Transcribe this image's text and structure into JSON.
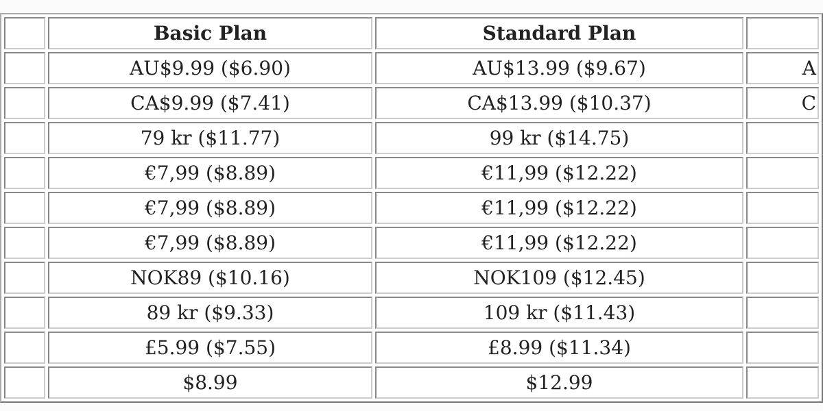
{
  "table": {
    "headers": [
      "",
      "Basic Plan",
      "Standard Plan",
      ""
    ],
    "rows": [
      {
        "basic": "AU$9.99 ($6.90)",
        "standard": "AU$13.99 ($9.67)",
        "premium_partial": "A"
      },
      {
        "basic": "CA$9.99 ($7.41)",
        "standard": "CA$13.99 ($10.37)",
        "premium_partial": "C"
      },
      {
        "basic": "79 kr ($11.77)",
        "standard": "99 kr ($14.75)",
        "premium_partial": ""
      },
      {
        "basic": "€7,99 ($8.89)",
        "standard": "€11,99 ($12.22)",
        "premium_partial": ""
      },
      {
        "basic": "€7,99 ($8.89)",
        "standard": "€11,99 ($12.22)",
        "premium_partial": ""
      },
      {
        "basic": "€7,99 ($8.89)",
        "standard": "€11,99 ($12.22)",
        "premium_partial": ""
      },
      {
        "basic": "NOK89 ($10.16)",
        "standard": "NOK109 ($12.45)",
        "premium_partial": ""
      },
      {
        "basic": "89 kr ($9.33)",
        "standard": "109 kr ($11.43)",
        "premium_partial": ""
      },
      {
        "basic": "£5.99 ($7.55)",
        "standard": "£8.99 ($11.34)",
        "premium_partial": ""
      },
      {
        "basic": "$8.99",
        "standard": "$12.99",
        "premium_partial": ""
      }
    ]
  }
}
